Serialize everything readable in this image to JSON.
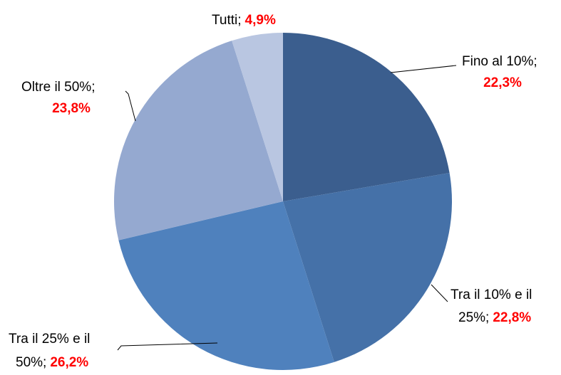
{
  "chart_data": {
    "type": "pie",
    "categories": [
      "Fino al 10%;",
      "Tra il 10% e il 25%;",
      "Tra il 25% e il 50%;",
      "Oltre il 50%;",
      "Tutti;"
    ],
    "values": [
      22.3,
      22.8,
      26.2,
      23.8,
      4.9
    ],
    "value_labels": [
      "22,3%",
      "22,8%",
      "26,2%",
      "23,8%",
      "4,9%"
    ],
    "colors": [
      "#3b5e8e",
      "#4571a8",
      "#4f81bd",
      "#95a9d0",
      "#b9c6e1"
    ]
  }
}
